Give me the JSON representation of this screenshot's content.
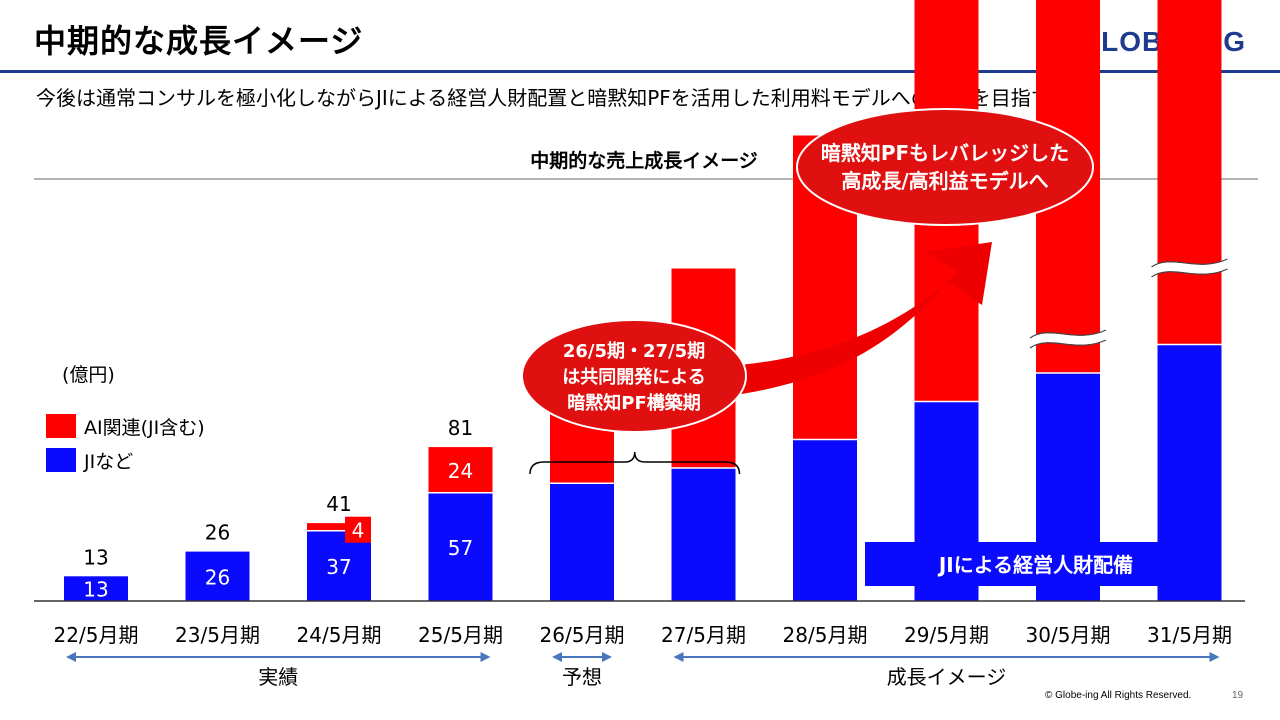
{
  "header": {
    "title": "中期的な成長イメージ",
    "logo": "GLOBE-ING",
    "subtitle": "今後は通常コンサルを極小化しながらJIによる経営人財配置と暗黙知PFを活用した利用料モデルへの変革を目指す"
  },
  "chart_data": {
    "type": "bar",
    "stacked": true,
    "title": "中期的な売上成長イメージ",
    "unit": "(億円)",
    "categories": [
      "22/5月期",
      "23/5月期",
      "24/5月期",
      "25/5月期",
      "26/5月期",
      "27/5月期",
      "28/5月期",
      "29/5月期",
      "30/5月期",
      "31/5月期"
    ],
    "series": [
      {
        "name": "JIなど",
        "color": "#0a0aff",
        "values": [
          13,
          26,
          37,
          57,
          62,
          70,
          85,
          105,
          120,
          135
        ]
      },
      {
        "name": "AI関連(JI含む)",
        "color": "#ff0000",
        "values": [
          0,
          0,
          4,
          24,
          56,
          105,
          160,
          240,
          370,
          540
        ]
      }
    ],
    "totals": [
      "13",
      "26",
      "41",
      "81",
      "118",
      "",
      "",
      "",
      "",
      ""
    ],
    "segment_labels": {
      "jis": [
        "13",
        "26",
        "37",
        "57",
        "",
        "",
        "",
        "",
        "",
        ""
      ],
      "ai": [
        "",
        "",
        "4",
        "24",
        "",
        "",
        "",
        "",
        "",
        ""
      ]
    },
    "scale_break_columns": [
      8,
      9
    ],
    "legend": [
      {
        "label": "AI関連(JI含む)",
        "color": "#ff0000"
      },
      {
        "label": "JIなど",
        "color": "#0a0aff"
      }
    ],
    "periods": [
      {
        "label": "実績",
        "from": 0,
        "to": 3
      },
      {
        "label": "予想",
        "from": 4,
        "to": 4
      },
      {
        "label": "成長イメージ",
        "from": 5,
        "to": 9
      }
    ],
    "annotations": {
      "bubble_build": [
        "26/5期・27/5期",
        "は共同開発による",
        "暗黙知PF構築期"
      ],
      "bubble_growth": [
        "暗黙知PFもレバレッジした",
        "高成長/高利益モデルへ"
      ],
      "ji_box": "JIによる経営人財配備"
    }
  },
  "footer": {
    "copyright": "© Globe-ing All Rights Reserved.",
    "page": "19"
  },
  "colors": {
    "accent": "#1f3b8f",
    "red": "#ff0000",
    "blue": "#0a0aff",
    "bubble": "#e01010",
    "arrow_line": "#4a77bb"
  }
}
